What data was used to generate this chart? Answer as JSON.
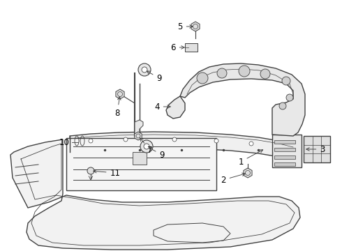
{
  "bg_color": "#ffffff",
  "line_color": "#404040",
  "label_color": "#000000",
  "label_fontsize": 8.5,
  "fig_width": 4.9,
  "fig_height": 3.6,
  "dpi": 100
}
